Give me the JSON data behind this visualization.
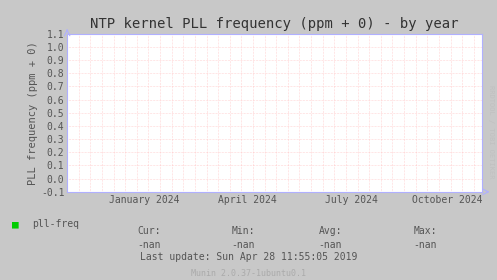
{
  "title": "NTP kernel PLL frequency (ppm + 0) - by year",
  "ylabel": "PLL frequency (ppm + 0)",
  "ylim": [
    -0.1,
    1.1
  ],
  "yticks": [
    -0.1,
    0.0,
    0.1,
    0.2,
    0.3,
    0.4,
    0.5,
    0.6,
    0.7,
    0.8,
    0.9,
    1.0,
    1.1
  ],
  "xlabels": [
    "January 2024",
    "April 2024",
    "July 2024",
    "October 2024"
  ],
  "vline_positions": [
    0.185,
    0.435,
    0.685,
    0.915
  ],
  "bg_color": "#c8c8c8",
  "plot_bg_color": "#ffffff",
  "grid_h_color": "#ffb0b0",
  "grid_v_color": "#ffb0b0",
  "border_color": "#b0b0ff",
  "title_color": "#333333",
  "watermark_color": "#c0c0c0",
  "legend_label": "pll-freq",
  "legend_color": "#00cc00",
  "text_color": "#555555",
  "cur_label": "Cur:",
  "cur_value": "-nan",
  "min_label": "Min:",
  "min_value": "-nan",
  "avg_label": "Avg:",
  "avg_value": "-nan",
  "max_label": "Max:",
  "max_value": "-nan",
  "last_update": "Last update: Sun Apr 28 11:55:05 2019",
  "munin_label": "Munin 2.0.37-1ubuntu0.1",
  "font_family": "DejaVu Sans Mono",
  "title_fontsize": 10,
  "ylabel_fontsize": 7.5,
  "tick_fontsize": 7,
  "footer_fontsize": 7,
  "munin_fontsize": 6
}
